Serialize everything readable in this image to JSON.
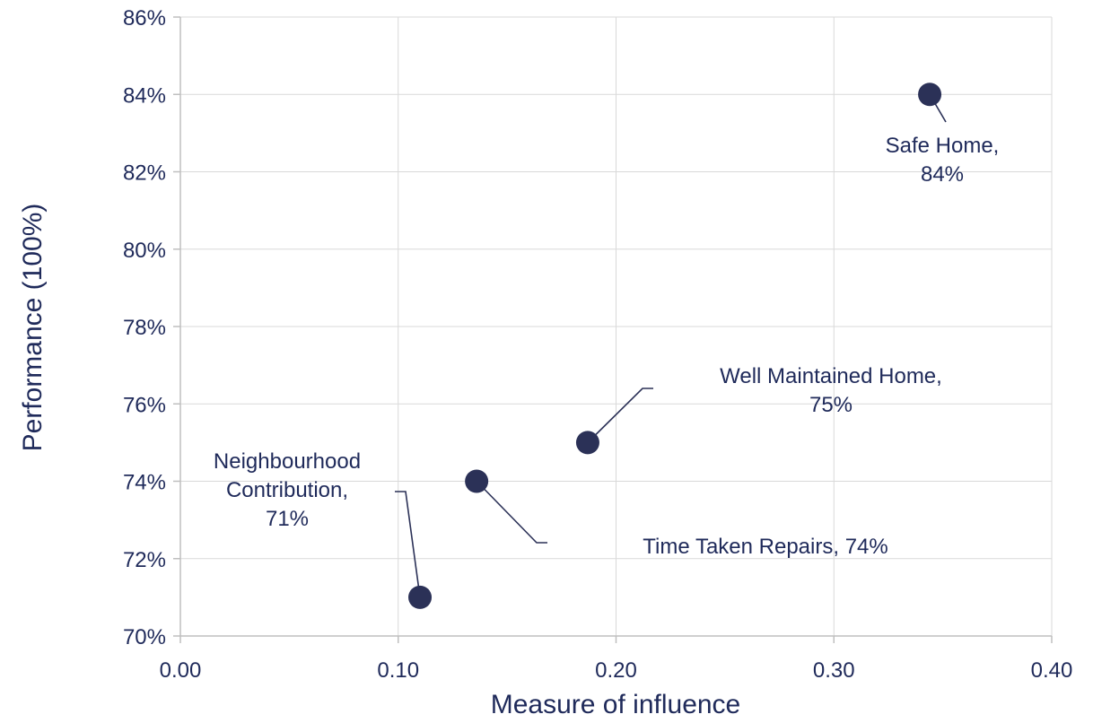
{
  "chart_data": {
    "type": "scatter",
    "xlabel": "Measure of influence",
    "ylabel": "Performance (100%)",
    "xlim": [
      0,
      0.4
    ],
    "ylim": [
      70,
      86
    ],
    "x_ticks": [
      "0.00",
      "0.10",
      "0.20",
      "0.30",
      "0.40"
    ],
    "y_ticks": [
      "70%",
      "72%",
      "74%",
      "76%",
      "78%",
      "80%",
      "82%",
      "84%",
      "86%"
    ],
    "grid": true,
    "marker_color": "#2b3157",
    "points": [
      {
        "name": "Safe Home",
        "x": 0.344,
        "y": 84,
        "label_lines": [
          "Safe Home,",
          "84%"
        ]
      },
      {
        "name": "Well Maintained Home",
        "x": 0.187,
        "y": 75,
        "label_lines": [
          "Well Maintained Home,",
          "75%"
        ]
      },
      {
        "name": "Time Taken Repairs",
        "x": 0.136,
        "y": 74,
        "label_lines": [
          "Time Taken Repairs, 74%"
        ]
      },
      {
        "name": "Neighbourhood Contribution",
        "x": 0.11,
        "y": 71,
        "label_lines": [
          "Neighbourhood",
          "Contribution,",
          "71%"
        ]
      }
    ]
  }
}
